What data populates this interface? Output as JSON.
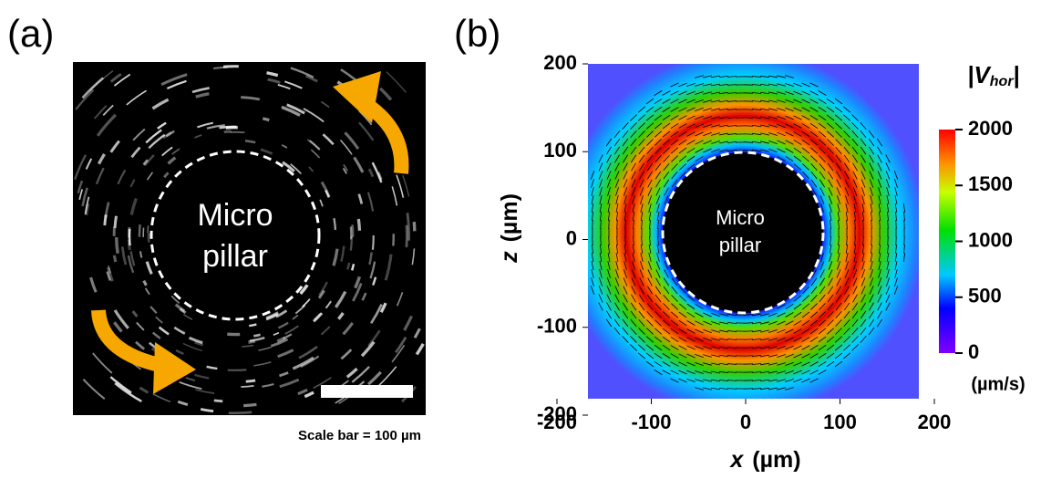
{
  "panel_a": {
    "label": "(a)",
    "pillar_label": [
      "Micro",
      "pillar"
    ],
    "scale_bar_text": "Scale bar = 100 µm"
  },
  "panel_b": {
    "label": "(b)",
    "pillar_label": [
      "Micro",
      "pillar"
    ],
    "x_axis": {
      "variable": "x",
      "unit": "(µm)",
      "lim": [
        -200,
        200
      ],
      "ticks": [
        -200,
        -100,
        0,
        100,
        200
      ]
    },
    "y_axis": {
      "variable": "z",
      "unit": "(µm)",
      "lim": [
        -200,
        200
      ],
      "ticks": [
        -200,
        -100,
        0,
        100,
        200
      ]
    },
    "colorbar": {
      "title_start": "|V",
      "title_sub": "hor",
      "title_end": "|",
      "unit": "(µm/s)",
      "lim": [
        0,
        2000
      ],
      "ticks": [
        0,
        500,
        1000,
        1500,
        2000
      ]
    }
  }
}
